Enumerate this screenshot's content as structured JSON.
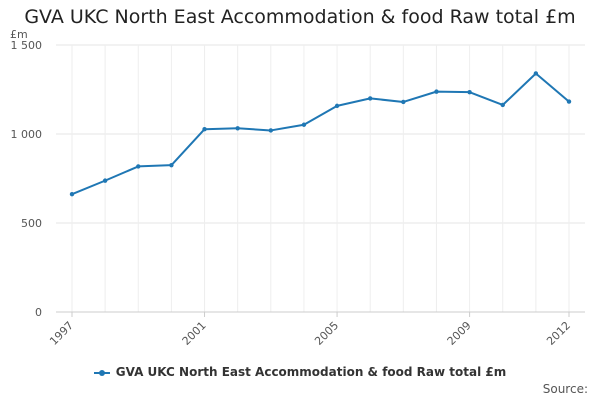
{
  "chart_data": {
    "type": "line",
    "title": "GVA UKC North East Accommodation & food Raw total £m",
    "ylabel": "£m",
    "xlabel": "",
    "ylim": [
      0,
      1500
    ],
    "yticks": [
      0,
      500,
      1000,
      1500
    ],
    "ytick_labels": [
      "0",
      "500",
      "1 000",
      "1 500"
    ],
    "xlim": [
      1997,
      2012
    ],
    "xticks": [
      1997,
      2001,
      2005,
      2009,
      2012
    ],
    "xtick_labels": [
      "1997",
      "2001",
      "2005",
      "2009",
      "2012"
    ],
    "grid": true,
    "legend": "bottom",
    "color": "#1f77b4",
    "x": [
      1997,
      1998,
      1999,
      2000,
      2001,
      2002,
      2003,
      2004,
      2005,
      2006,
      2007,
      2008,
      2009,
      2010,
      2011,
      2012
    ],
    "series": [
      {
        "name": "GVA UKC North East Accommodation & food Raw total £m",
        "values": [
          662,
          738,
          818,
          825,
          1027,
          1032,
          1020,
          1052,
          1158,
          1200,
          1180,
          1238,
          1235,
          1163,
          1340,
          1182
        ]
      }
    ]
  },
  "source_label": "Source:"
}
